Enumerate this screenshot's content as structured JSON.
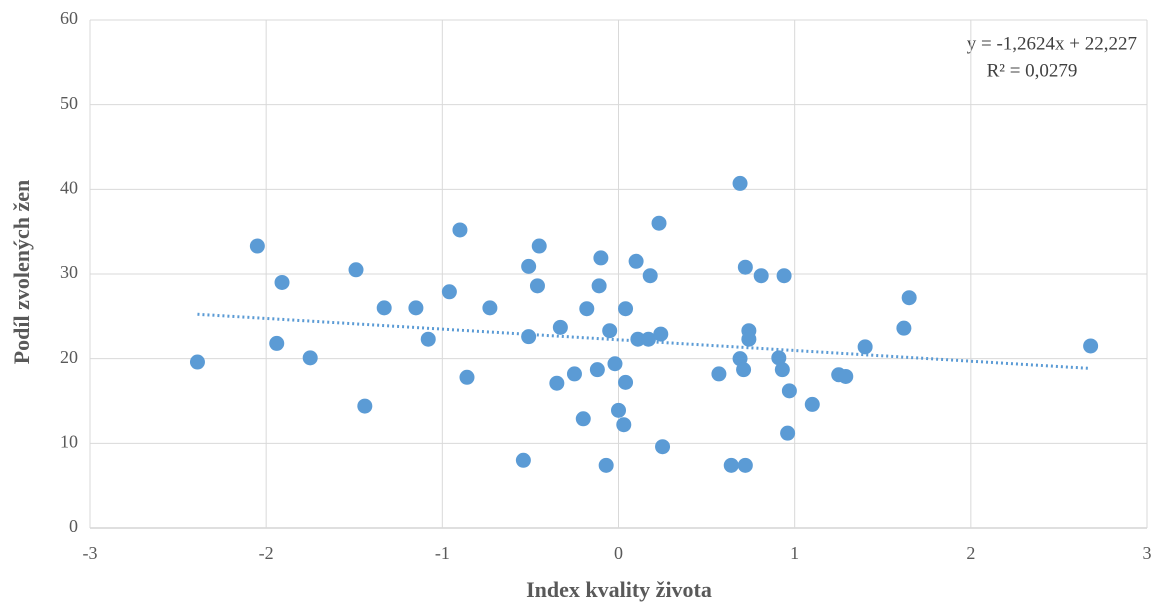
{
  "chart_data": {
    "type": "scatter",
    "x_label": "Index kvality života",
    "y_label": "Podíl zvolených žen",
    "color": "#5b9bd5",
    "xlim": [
      -3,
      3
    ],
    "xticks": [
      -3,
      -2,
      -1,
      0,
      1,
      2,
      3
    ],
    "ylim": [
      0,
      60
    ],
    "yticks": [
      0,
      10,
      20,
      30,
      40,
      50,
      60
    ],
    "grid": true,
    "trendline": {
      "label": "y = -1,2624x + 22,227",
      "r2_label": "R² = 0,0279",
      "slope": -1.2624,
      "intercept": 22.227
    },
    "x": [
      -2.39,
      -2.05,
      -1.91,
      -1.94,
      -1.75,
      -1.49,
      -1.44,
      -1.33,
      -1.15,
      -1.08,
      -0.96,
      -0.9,
      -0.86,
      -0.73,
      -0.54,
      -0.51,
      -0.51,
      -0.46,
      -0.45,
      -0.35,
      -0.33,
      -0.25,
      -0.2,
      -0.18,
      -0.12,
      -0.11,
      -0.1,
      -0.07,
      -0.05,
      -0.02,
      0.0,
      0.03,
      0.04,
      0.04,
      0.1,
      0.11,
      0.17,
      0.18,
      0.23,
      0.24,
      0.25,
      0.57,
      0.64,
      0.69,
      0.69,
      0.71,
      0.72,
      0.72,
      0.74,
      0.74,
      0.81,
      0.91,
      0.93,
      0.94,
      0.96,
      0.97,
      1.1,
      1.25,
      1.29,
      1.4,
      1.62,
      1.65,
      2.68
    ],
    "values": [
      19.6,
      33.3,
      29.0,
      21.8,
      20.1,
      30.5,
      14.4,
      26.0,
      26.0,
      22.3,
      27.9,
      35.2,
      17.8,
      26.0,
      8.0,
      30.9,
      22.6,
      28.6,
      33.3,
      17.1,
      23.7,
      18.2,
      12.9,
      25.9,
      18.7,
      28.6,
      31.9,
      7.4,
      23.3,
      19.4,
      13.9,
      12.2,
      17.2,
      25.9,
      31.5,
      22.3,
      22.3,
      29.8,
      36.0,
      22.9,
      9.6,
      18.2,
      7.4,
      20.0,
      40.7,
      18.7,
      30.8,
      7.4,
      23.3,
      22.3,
      29.8,
      20.1,
      18.7,
      29.8,
      11.2,
      16.2,
      14.6,
      18.1,
      17.9,
      21.4,
      23.6,
      27.2,
      21.5
    ]
  }
}
